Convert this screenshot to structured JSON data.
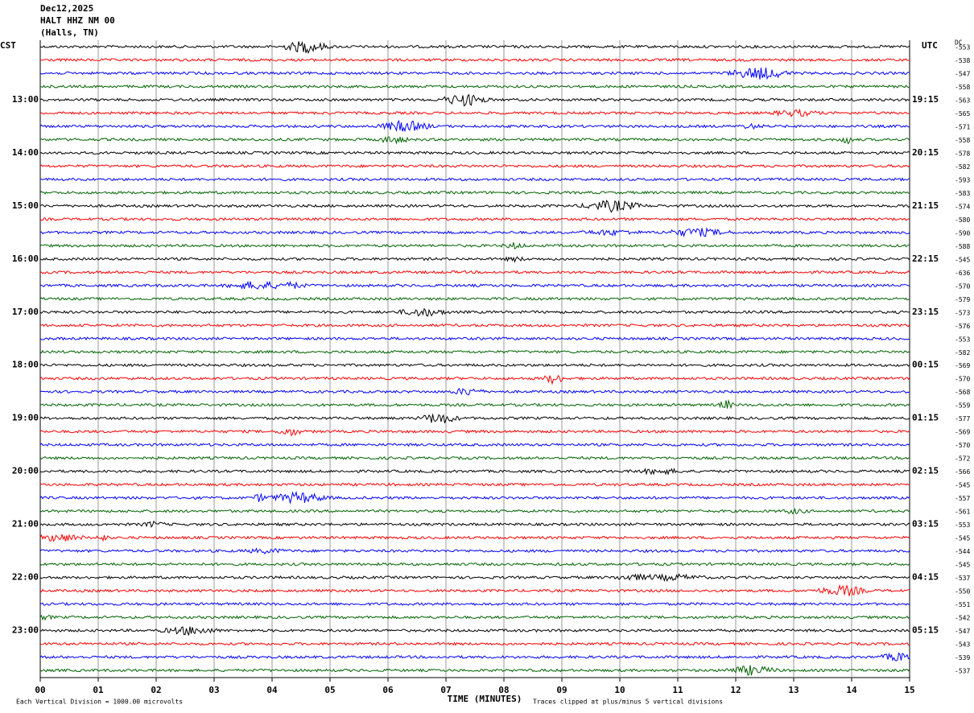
{
  "header": {
    "date": "Dec12,2025",
    "station": "HALT HHZ NM 00",
    "location": "(Halls, TN)"
  },
  "left_timezone": "CST",
  "right_timezone": "UTC",
  "dc_label": "DC",
  "trace_colors": [
    "#000000",
    "#ff0000",
    "#0000ff",
    "#006400"
  ],
  "rows": [
    {
      "dc": -553
    },
    {
      "dc": -538
    },
    {
      "dc": -547
    },
    {
      "dc": -558
    },
    {
      "left": "13:00",
      "right": "19:15",
      "dc": -563
    },
    {
      "dc": -565
    },
    {
      "dc": -571
    },
    {
      "dc": -558
    },
    {
      "left": "14:00",
      "right": "20:15",
      "dc": -578
    },
    {
      "dc": -582
    },
    {
      "dc": -593
    },
    {
      "dc": -583
    },
    {
      "left": "15:00",
      "right": "21:15",
      "dc": -574
    },
    {
      "dc": -580
    },
    {
      "dc": -590
    },
    {
      "dc": -588
    },
    {
      "left": "16:00",
      "right": "22:15",
      "dc": -545
    },
    {
      "dc": -636
    },
    {
      "dc": -570
    },
    {
      "dc": -579
    },
    {
      "left": "17:00",
      "right": "23:15",
      "dc": -573
    },
    {
      "dc": -576
    },
    {
      "dc": -553
    },
    {
      "dc": -582
    },
    {
      "left": "18:00",
      "right": "00:15",
      "dc": -569
    },
    {
      "dc": -570
    },
    {
      "dc": -568
    },
    {
      "dc": -559
    },
    {
      "left": "19:00",
      "right": "01:15",
      "dc": -577
    },
    {
      "dc": -569
    },
    {
      "dc": -570
    },
    {
      "dc": -572
    },
    {
      "left": "20:00",
      "right": "02:15",
      "dc": -566
    },
    {
      "dc": -545
    },
    {
      "dc": -557
    },
    {
      "dc": -561
    },
    {
      "left": "21:00",
      "right": "03:15",
      "dc": -553
    },
    {
      "dc": -545
    },
    {
      "dc": -544
    },
    {
      "dc": -545
    },
    {
      "left": "22:00",
      "right": "04:15",
      "dc": -537
    },
    {
      "dc": -550
    },
    {
      "dc": -551
    },
    {
      "dc": -542
    },
    {
      "left": "23:00",
      "right": "05:15",
      "dc": -547
    },
    {
      "dc": -543
    },
    {
      "dc": -539
    },
    {
      "dc": -537
    }
  ],
  "x_axis": {
    "labels": [
      "00",
      "01",
      "02",
      "03",
      "04",
      "05",
      "06",
      "07",
      "08",
      "09",
      "10",
      "11",
      "12",
      "13",
      "14",
      "15"
    ],
    "title": "TIME (MINUTES)"
  },
  "footer": {
    "scale": "Each Vertical Division = 1000.00 microvolts",
    "clip": "Traces clipped at plus/minus 5 vertical divisions"
  }
}
